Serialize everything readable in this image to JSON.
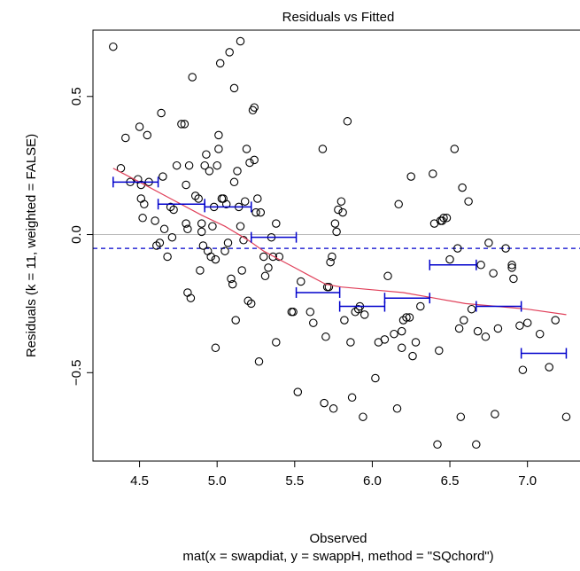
{
  "chart_data": {
    "type": "scatter",
    "title": "Residuals vs Fitted",
    "xlabel": "Observed",
    "subtitle": "mat(x = swapdiat, y = swappH, method = \"SQchord\")",
    "ylabel": "Residuals (k = 11, weighted = FALSE)",
    "xlim": [
      4.2,
      7.35
    ],
    "ylim": [
      -0.82,
      0.74
    ],
    "xticks": [
      4.5,
      5.0,
      5.5,
      6.0,
      6.5,
      7.0
    ],
    "xtick_labels": [
      "4.5",
      "5.0",
      "5.5",
      "6.0",
      "6.5",
      "7.0"
    ],
    "yticks": [
      -0.5,
      0.0,
      0.5
    ],
    "ytick_labels": [
      "−0.5",
      "0.0",
      "0.5"
    ],
    "zero_line": 0.0,
    "mean_line": -0.05,
    "colors": {
      "points": "#000000",
      "lowess": "#e0405a",
      "bin_means": "#0000cc",
      "mean_line": "#0000cc",
      "zero_line": "#bbbbbb"
    },
    "points": [
      [
        4.33,
        0.68
      ],
      [
        4.38,
        0.24
      ],
      [
        4.41,
        0.35
      ],
      [
        4.44,
        0.19
      ],
      [
        4.49,
        0.2
      ],
      [
        4.5,
        0.39
      ],
      [
        4.51,
        0.18
      ],
      [
        4.51,
        0.13
      ],
      [
        4.52,
        0.06
      ],
      [
        4.53,
        0.11
      ],
      [
        4.55,
        0.36
      ],
      [
        4.56,
        0.19
      ],
      [
        4.6,
        0.05
      ],
      [
        4.61,
        -0.04
      ],
      [
        4.63,
        -0.03
      ],
      [
        4.64,
        0.44
      ],
      [
        4.65,
        0.21
      ],
      [
        4.66,
        0.02
      ],
      [
        4.68,
        -0.08
      ],
      [
        4.7,
        0.1
      ],
      [
        4.71,
        -0.01
      ],
      [
        4.72,
        0.09
      ],
      [
        4.74,
        0.25
      ],
      [
        4.77,
        0.4
      ],
      [
        4.79,
        0.4
      ],
      [
        4.8,
        0.18
      ],
      [
        4.8,
        0.04
      ],
      [
        4.81,
        0.02
      ],
      [
        4.81,
        -0.21
      ],
      [
        4.82,
        0.25
      ],
      [
        4.83,
        -0.23
      ],
      [
        4.84,
        0.57
      ],
      [
        4.86,
        0.14
      ],
      [
        4.88,
        0.13
      ],
      [
        4.89,
        -0.13
      ],
      [
        4.9,
        0.04
      ],
      [
        4.9,
        0.01
      ],
      [
        4.91,
        -0.04
      ],
      [
        4.92,
        0.25
      ],
      [
        4.93,
        0.29
      ],
      [
        4.94,
        -0.06
      ],
      [
        4.95,
        0.23
      ],
      [
        4.96,
        -0.08
      ],
      [
        4.97,
        0.03
      ],
      [
        4.98,
        0.1
      ],
      [
        4.99,
        -0.41
      ],
      [
        4.99,
        -0.09
      ],
      [
        5.0,
        0.25
      ],
      [
        5.01,
        0.36
      ],
      [
        5.01,
        0.31
      ],
      [
        5.02,
        0.62
      ],
      [
        5.03,
        0.13
      ],
      [
        5.04,
        0.13
      ],
      [
        5.05,
        -0.06
      ],
      [
        5.06,
        0.11
      ],
      [
        5.07,
        -0.03
      ],
      [
        5.08,
        0.66
      ],
      [
        5.09,
        -0.16
      ],
      [
        5.1,
        -0.18
      ],
      [
        5.11,
        0.19
      ],
      [
        5.11,
        0.53
      ],
      [
        5.12,
        -0.31
      ],
      [
        5.13,
        0.23
      ],
      [
        5.14,
        0.1
      ],
      [
        5.15,
        0.7
      ],
      [
        5.15,
        0.03
      ],
      [
        5.16,
        -0.13
      ],
      [
        5.17,
        -0.02
      ],
      [
        5.18,
        0.12
      ],
      [
        5.19,
        0.31
      ],
      [
        5.2,
        -0.24
      ],
      [
        5.21,
        0.26
      ],
      [
        5.22,
        -0.25
      ],
      [
        5.23,
        0.45
      ],
      [
        5.24,
        0.46
      ],
      [
        5.24,
        0.27
      ],
      [
        5.25,
        0.08
      ],
      [
        5.26,
        0.13
      ],
      [
        5.27,
        -0.46
      ],
      [
        5.28,
        0.08
      ],
      [
        5.3,
        -0.08
      ],
      [
        5.31,
        -0.15
      ],
      [
        5.33,
        -0.12
      ],
      [
        5.35,
        -0.01
      ],
      [
        5.36,
        -0.08
      ],
      [
        5.38,
        0.04
      ],
      [
        5.38,
        -0.39
      ],
      [
        5.4,
        -0.08
      ],
      [
        5.48,
        -0.28
      ],
      [
        5.49,
        -0.28
      ],
      [
        5.52,
        -0.57
      ],
      [
        5.54,
        -0.17
      ],
      [
        5.6,
        -0.28
      ],
      [
        5.62,
        -0.32
      ],
      [
        5.68,
        0.31
      ],
      [
        5.69,
        -0.61
      ],
      [
        5.7,
        -0.37
      ],
      [
        5.71,
        -0.19
      ],
      [
        5.72,
        -0.19
      ],
      [
        5.73,
        -0.1
      ],
      [
        5.74,
        -0.08
      ],
      [
        5.75,
        -0.63
      ],
      [
        5.76,
        0.04
      ],
      [
        5.77,
        0.01
      ],
      [
        5.78,
        0.09
      ],
      [
        5.8,
        0.12
      ],
      [
        5.81,
        0.08
      ],
      [
        5.82,
        -0.31
      ],
      [
        5.84,
        0.41
      ],
      [
        5.86,
        -0.39
      ],
      [
        5.87,
        -0.59
      ],
      [
        5.89,
        -0.28
      ],
      [
        5.91,
        -0.27
      ],
      [
        5.92,
        -0.26
      ],
      [
        5.94,
        -0.66
      ],
      [
        5.95,
        -0.29
      ],
      [
        6.02,
        -0.52
      ],
      [
        6.04,
        -0.39
      ],
      [
        6.08,
        -0.38
      ],
      [
        6.1,
        -0.15
      ],
      [
        6.14,
        -0.36
      ],
      [
        6.16,
        -0.63
      ],
      [
        6.17,
        0.11
      ],
      [
        6.19,
        -0.41
      ],
      [
        6.19,
        -0.35
      ],
      [
        6.2,
        -0.31
      ],
      [
        6.22,
        -0.3
      ],
      [
        6.24,
        -0.3
      ],
      [
        6.25,
        0.21
      ],
      [
        6.26,
        -0.44
      ],
      [
        6.28,
        -0.39
      ],
      [
        6.31,
        -0.26
      ],
      [
        6.39,
        0.22
      ],
      [
        6.4,
        0.04
      ],
      [
        6.42,
        -0.76
      ],
      [
        6.43,
        -0.42
      ],
      [
        6.44,
        0.05
      ],
      [
        6.45,
        0.05
      ],
      [
        6.46,
        0.06
      ],
      [
        6.48,
        0.06
      ],
      [
        6.5,
        -0.09
      ],
      [
        6.53,
        0.31
      ],
      [
        6.55,
        -0.05
      ],
      [
        6.56,
        -0.34
      ],
      [
        6.57,
        -0.66
      ],
      [
        6.58,
        0.17
      ],
      [
        6.59,
        -0.31
      ],
      [
        6.62,
        0.12
      ],
      [
        6.64,
        -0.27
      ],
      [
        6.67,
        -0.76
      ],
      [
        6.68,
        -0.35
      ],
      [
        6.7,
        -0.11
      ],
      [
        6.73,
        -0.37
      ],
      [
        6.75,
        -0.03
      ],
      [
        6.78,
        -0.14
      ],
      [
        6.79,
        -0.65
      ],
      [
        6.81,
        -0.34
      ],
      [
        6.86,
        -0.05
      ],
      [
        6.9,
        -0.12
      ],
      [
        6.9,
        -0.11
      ],
      [
        6.91,
        -0.16
      ],
      [
        6.95,
        -0.33
      ],
      [
        6.97,
        -0.49
      ],
      [
        7.0,
        -0.32
      ],
      [
        7.08,
        -0.36
      ],
      [
        7.14,
        -0.48
      ],
      [
        7.18,
        -0.31
      ],
      [
        7.25,
        -0.66
      ]
    ],
    "lowess": [
      [
        4.33,
        0.24
      ],
      [
        4.5,
        0.19
      ],
      [
        4.7,
        0.13
      ],
      [
        4.9,
        0.07
      ],
      [
        5.05,
        0.03
      ],
      [
        5.2,
        -0.02
      ],
      [
        5.3,
        -0.06
      ],
      [
        5.4,
        -0.09
      ],
      [
        5.5,
        -0.12
      ],
      [
        5.6,
        -0.15
      ],
      [
        5.7,
        -0.18
      ],
      [
        5.8,
        -0.19
      ],
      [
        6.0,
        -0.2
      ],
      [
        6.2,
        -0.21
      ],
      [
        6.4,
        -0.23
      ],
      [
        6.6,
        -0.25
      ],
      [
        6.8,
        -0.26
      ],
      [
        7.0,
        -0.27
      ],
      [
        7.25,
        -0.29
      ]
    ],
    "bin_means": [
      {
        "x0": 4.33,
        "x1": 4.62,
        "y": 0.19
      },
      {
        "x0": 4.62,
        "x1": 4.92,
        "y": 0.11
      },
      {
        "x0": 4.92,
        "x1": 5.22,
        "y": 0.1
      },
      {
        "x0": 5.22,
        "x1": 5.51,
        "y": -0.01
      },
      {
        "x0": 5.51,
        "x1": 5.79,
        "y": -0.21
      },
      {
        "x0": 5.79,
        "x1": 6.08,
        "y": -0.26
      },
      {
        "x0": 6.08,
        "x1": 6.37,
        "y": -0.23
      },
      {
        "x0": 6.37,
        "x1": 6.67,
        "y": -0.11
      },
      {
        "x0": 6.67,
        "x1": 6.96,
        "y": -0.26
      },
      {
        "x0": 6.96,
        "x1": 7.25,
        "y": -0.43
      }
    ]
  }
}
